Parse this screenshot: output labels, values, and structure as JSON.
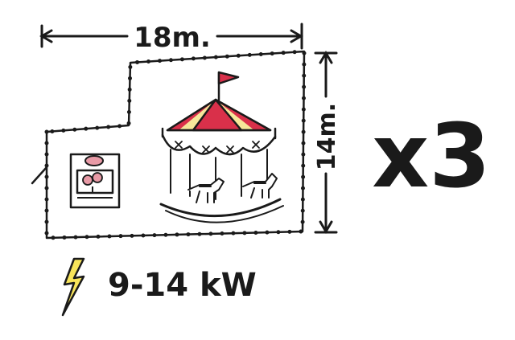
{
  "dimensions": {
    "width_label": "18m.",
    "depth_label": "14m."
  },
  "multiplier": "x3",
  "power": {
    "icon": "lightning-bolt-icon",
    "label": "9-14 kW"
  },
  "features": {
    "carousel_icon": "carousel-icon",
    "ticket_booth_icon": "ticket-booth-icon",
    "boundary": "dotted-perimeter-outline"
  },
  "colors": {
    "ink": "#1a1a1a",
    "canopy_red": "#d9304a",
    "canopy_yellow": "#f6e79a",
    "bolt_yellow": "#f7e45a",
    "booth_pink": "#e89aa6"
  }
}
